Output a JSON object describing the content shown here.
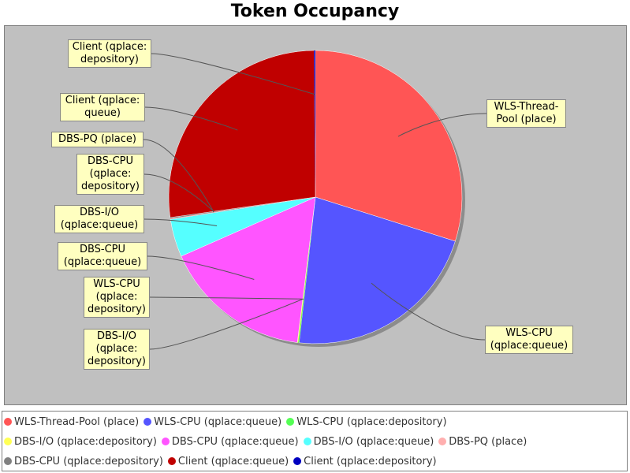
{
  "chart_data": {
    "type": "pie",
    "title": "Token Occupancy",
    "slices": [
      {
        "label": "WLS-Thread-Pool (place)",
        "value": 30.0,
        "color": "#ff5555"
      },
      {
        "label": "WLS-CPU (qplace:queue)",
        "value": 22.0,
        "color": "#5555ff"
      },
      {
        "label": "WLS-CPU (qplace:depository)",
        "value": 0.1,
        "color": "#55ff55"
      },
      {
        "label": "DBS-I/O (qplace:depository)",
        "value": 0.1,
        "color": "#ffff55"
      },
      {
        "label": "DBS-CPU (qplace:queue)",
        "value": 16.5,
        "color": "#ff55ff"
      },
      {
        "label": "DBS-I/O (qplace:queue)",
        "value": 4.2,
        "color": "#55ffff"
      },
      {
        "label": "DBS-PQ (place)",
        "value": 0.1,
        "color": "#ffafaf"
      },
      {
        "label": "DBS-CPU (qplace:depository)",
        "value": 0.1,
        "color": "#808080"
      },
      {
        "label": "Client (qplace:queue)",
        "value": 27.2,
        "color": "#c00000"
      },
      {
        "label": "Client (qplace:depository)",
        "value": 0.15,
        "color": "#0000c0"
      }
    ],
    "callouts": [
      {
        "slice": 0,
        "lines": [
          "WLS-Thread-",
          "Pool (place)"
        ]
      },
      {
        "slice": 1,
        "lines": [
          "WLS-CPU",
          "(qplace:queue)"
        ]
      },
      {
        "slice": 2,
        "lines": [
          "WLS-CPU",
          "(qplace:",
          "depository)"
        ]
      },
      {
        "slice": 3,
        "lines": [
          "DBS-I/O",
          "(qplace:",
          "depository)"
        ]
      },
      {
        "slice": 4,
        "lines": [
          "DBS-CPU",
          "(qplace:queue)"
        ]
      },
      {
        "slice": 5,
        "lines": [
          "DBS-I/O",
          "(qplace:queue)"
        ]
      },
      {
        "slice": 6,
        "lines": [
          "DBS-PQ (place)"
        ]
      },
      {
        "slice": 7,
        "lines": [
          "DBS-CPU",
          "(qplace:",
          "depository)"
        ]
      },
      {
        "slice": 8,
        "lines": [
          "Client (qplace:",
          "queue)"
        ]
      },
      {
        "slice": 9,
        "lines": [
          "Client (qplace:",
          "depository)"
        ]
      }
    ],
    "legend_placement": "bottom"
  }
}
